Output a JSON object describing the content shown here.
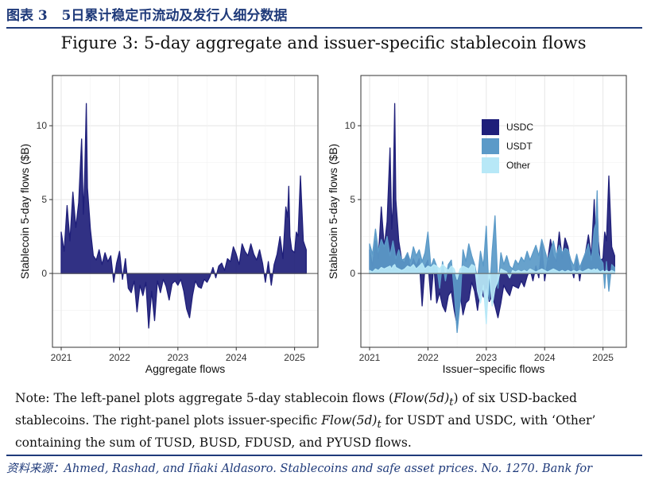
{
  "header": {
    "label": "图表 3",
    "title": "5日累计稳定币流动及发行人细分数据"
  },
  "figure_title": "Figure 3: 5-day aggregate and issuer-specific stablecoin flows",
  "note": {
    "lead": "Note:",
    "p1": " The left-panel plots aggregate 5-day stablecoin flows (",
    "m1": "Flow(5d)",
    "m1sub": "t",
    "p2": ") of six USD-backed stablecoins. The right-panel plots issuer-specific ",
    "m2": "Flow(5d)",
    "m2sub": "t",
    "p3": " for USDT and USDC, with ‘Other’ containing the sum of TUSD, BUSD, FDUSD, and PYUSD flows."
  },
  "source": "资料来源：Ahmed, Rashad, and Iñaki Aldasoro. Stablecoins and safe asset prices. No. 1270. Bank for",
  "colors": {
    "usdc": "#1f1f7a",
    "usdt": "#5b9ac8",
    "other": "#b7e8f7",
    "aggregate": "#1f1f7a",
    "zero_line": "#555555",
    "grid": "#e6e6e6"
  },
  "chart_data": [
    {
      "type": "area",
      "xlabel": "Aggregate flows",
      "ylabel": "Stablecoin 5-day flows ($B)",
      "xlim": [
        2020.85,
        2025.4
      ],
      "ylim": [
        -5,
        13.4
      ],
      "x_ticks": [
        2021,
        2022,
        2023,
        2024,
        2025
      ],
      "x_tick_labels": [
        "2021",
        "2022",
        "2023",
        "2024",
        "2025"
      ],
      "y_ticks": [
        0,
        5,
        10
      ],
      "y_tick_labels": [
        "0",
        "5",
        "10"
      ],
      "grid": true,
      "series": [
        {
          "key": "aggregate",
          "x": [
            2021.0,
            2021.05,
            2021.1,
            2021.15,
            2021.2,
            2021.25,
            2021.3,
            2021.35,
            2021.38,
            2021.4,
            2021.43,
            2021.45,
            2021.5,
            2021.55,
            2021.6,
            2021.65,
            2021.7,
            2021.75,
            2021.8,
            2021.85,
            2021.9,
            2021.95,
            2022.0,
            2022.05,
            2022.1,
            2022.15,
            2022.2,
            2022.25,
            2022.3,
            2022.35,
            2022.4,
            2022.45,
            2022.5,
            2022.55,
            2022.6,
            2022.65,
            2022.7,
            2022.75,
            2022.8,
            2022.85,
            2022.9,
            2022.95,
            2023.0,
            2023.05,
            2023.1,
            2023.15,
            2023.2,
            2023.25,
            2023.3,
            2023.35,
            2023.4,
            2023.45,
            2023.5,
            2023.55,
            2023.6,
            2023.65,
            2023.7,
            2023.75,
            2023.8,
            2023.85,
            2023.9,
            2023.95,
            2024.0,
            2024.05,
            2024.1,
            2024.15,
            2024.2,
            2024.25,
            2024.3,
            2024.35,
            2024.4,
            2024.45,
            2024.5,
            2024.55,
            2024.6,
            2024.65,
            2024.7,
            2024.75,
            2024.8,
            2024.85,
            2024.88,
            2024.9,
            2024.92,
            2024.95,
            2025.0,
            2025.03,
            2025.06,
            2025.1,
            2025.15,
            2025.2
          ],
          "y": [
            2.8,
            1.5,
            4.6,
            2.2,
            5.5,
            3.1,
            4.8,
            9.1,
            4.0,
            6.2,
            11.5,
            5.8,
            3.0,
            1.2,
            0.9,
            1.6,
            0.6,
            1.4,
            0.8,
            1.2,
            -0.6,
            0.7,
            1.5,
            -0.4,
            1.0,
            -1.0,
            -1.3,
            -0.5,
            -2.6,
            -0.8,
            -1.5,
            -0.6,
            -3.7,
            -1.2,
            -3.2,
            -0.5,
            -1.3,
            -0.4,
            -0.9,
            -1.8,
            -0.7,
            -0.5,
            -0.8,
            -0.4,
            -1.2,
            -2.4,
            -3.0,
            -1.5,
            -0.5,
            -0.9,
            -1.0,
            -0.4,
            -0.6,
            -0.2,
            0.4,
            -0.3,
            0.5,
            0.7,
            0.2,
            1.0,
            0.8,
            1.8,
            1.3,
            0.6,
            2.0,
            1.5,
            1.2,
            2.0,
            1.3,
            0.9,
            1.6,
            0.7,
            -0.6,
            0.8,
            -0.8,
            0.6,
            1.3,
            2.5,
            1.0,
            4.5,
            3.8,
            5.9,
            2.5,
            1.6,
            1.4,
            2.8,
            2.5,
            6.6,
            2.2,
            1.6
          ]
        }
      ]
    },
    {
      "type": "area",
      "xlabel": "Issuer−specific flows",
      "ylabel": "Stablecoin 5-day flows ($B)",
      "xlim": [
        2020.85,
        2025.4
      ],
      "ylim": [
        -5,
        13.4
      ],
      "x_ticks": [
        2021,
        2022,
        2023,
        2024,
        2025
      ],
      "x_tick_labels": [
        "2021",
        "2022",
        "2023",
        "2024",
        "2025"
      ],
      "y_ticks": [
        0,
        5,
        10
      ],
      "y_tick_labels": [
        "0",
        "5",
        "10"
      ],
      "grid": true,
      "legend_position": "top-right",
      "series": [
        {
          "name": "USDC",
          "key": "usdc",
          "x": [
            2021.0,
            2021.05,
            2021.1,
            2021.15,
            2021.2,
            2021.25,
            2021.3,
            2021.35,
            2021.38,
            2021.4,
            2021.43,
            2021.45,
            2021.5,
            2021.55,
            2021.6,
            2021.65,
            2021.7,
            2021.75,
            2021.8,
            2021.85,
            2021.9,
            2021.95,
            2022.0,
            2022.05,
            2022.1,
            2022.15,
            2022.2,
            2022.25,
            2022.3,
            2022.35,
            2022.4,
            2022.45,
            2022.5,
            2022.55,
            2022.6,
            2022.65,
            2022.7,
            2022.75,
            2022.8,
            2022.85,
            2022.9,
            2022.95,
            2023.0,
            2023.05,
            2023.1,
            2023.15,
            2023.2,
            2023.25,
            2023.3,
            2023.35,
            2023.4,
            2023.45,
            2023.5,
            2023.55,
            2023.6,
            2023.65,
            2023.7,
            2023.75,
            2023.8,
            2023.85,
            2023.9,
            2023.95,
            2024.0,
            2024.05,
            2024.1,
            2024.15,
            2024.2,
            2024.25,
            2024.3,
            2024.35,
            2024.4,
            2024.45,
            2024.5,
            2024.55,
            2024.6,
            2024.65,
            2024.7,
            2024.75,
            2024.8,
            2024.85,
            2024.88,
            2024.9,
            2024.92,
            2024.95,
            2025.0,
            2025.03,
            2025.06,
            2025.1,
            2025.15,
            2025.2
          ],
          "y": [
            1.6,
            0.5,
            2.2,
            1.0,
            4.5,
            1.8,
            3.5,
            8.5,
            3.0,
            4.5,
            11.5,
            5.0,
            2.2,
            0.9,
            0.7,
            1.4,
            0.3,
            1.0,
            0.5,
            1.0,
            -2.2,
            0.5,
            0.9,
            -1.8,
            0.6,
            -2.0,
            -1.3,
            -2.2,
            -2.6,
            -1.5,
            -1.2,
            -2.5,
            -3.5,
            -1.3,
            -2.8,
            -2.0,
            -1.8,
            -0.6,
            -1.2,
            -2.5,
            -1.0,
            -1.6,
            -0.8,
            -1.9,
            -1.5,
            -2.2,
            -3.0,
            -2.0,
            -0.8,
            -1.2,
            -1.5,
            -0.8,
            -0.9,
            -1.0,
            -0.5,
            -0.9,
            -0.2,
            0.3,
            -0.5,
            0.5,
            -0.3,
            2.0,
            -0.5,
            0.8,
            2.3,
            1.2,
            0.8,
            2.8,
            1.0,
            2.4,
            1.8,
            0.5,
            -0.3,
            1.0,
            -0.5,
            0.8,
            1.4,
            2.6,
            1.2,
            5.0,
            2.0,
            4.7,
            2.2,
            0.9,
            1.0,
            2.8,
            2.2,
            6.6,
            1.8,
            1.2
          ]
        },
        {
          "name": "USDT",
          "key": "usdt",
          "x": [
            2021.0,
            2021.05,
            2021.1,
            2021.15,
            2021.2,
            2021.25,
            2021.3,
            2021.35,
            2021.38,
            2021.4,
            2021.43,
            2021.45,
            2021.5,
            2021.55,
            2021.6,
            2021.65,
            2021.7,
            2021.75,
            2021.8,
            2021.85,
            2021.9,
            2021.95,
            2022.0,
            2022.05,
            2022.1,
            2022.15,
            2022.2,
            2022.25,
            2022.3,
            2022.35,
            2022.4,
            2022.45,
            2022.5,
            2022.55,
            2022.6,
            2022.65,
            2022.7,
            2022.75,
            2022.8,
            2022.85,
            2022.9,
            2022.95,
            2023.0,
            2023.05,
            2023.1,
            2023.15,
            2023.2,
            2023.25,
            2023.3,
            2023.35,
            2023.4,
            2023.45,
            2023.5,
            2023.55,
            2023.6,
            2023.65,
            2023.7,
            2023.75,
            2023.8,
            2023.85,
            2023.9,
            2023.95,
            2024.0,
            2024.05,
            2024.1,
            2024.15,
            2024.2,
            2024.25,
            2024.3,
            2024.35,
            2024.4,
            2024.45,
            2024.5,
            2024.55,
            2024.6,
            2024.65,
            2024.7,
            2024.75,
            2024.8,
            2024.85,
            2024.88,
            2024.9,
            2024.92,
            2024.95,
            2025.0,
            2025.03,
            2025.06,
            2025.1,
            2025.15,
            2025.2
          ],
          "y": [
            2.0,
            1.3,
            3.0,
            1.5,
            2.3,
            1.8,
            2.5,
            1.2,
            1.8,
            2.2,
            1.5,
            1.0,
            1.6,
            0.9,
            1.0,
            1.4,
            0.8,
            1.8,
            1.2,
            1.6,
            0.8,
            1.4,
            2.8,
            0.4,
            1.0,
            0.5,
            -1.0,
            0.8,
            -0.5,
            0.6,
            0.9,
            -1.2,
            -4.0,
            -2.0,
            1.6,
            0.8,
            2.0,
            1.2,
            0.6,
            -0.4,
            1.5,
            0.5,
            3.2,
            -1.8,
            1.5,
            3.9,
            -1.0,
            1.4,
            0.6,
            1.2,
            0.5,
            0.3,
            0.9,
            0.6,
            1.1,
            0.8,
            1.5,
            0.9,
            1.4,
            1.9,
            1.2,
            2.3,
            1.6,
            0.9,
            1.5,
            2.2,
            1.2,
            1.9,
            1.4,
            1.7,
            1.6,
            0.9,
            0.5,
            1.3,
            0.4,
            0.9,
            1.4,
            2.0,
            0.9,
            3.0,
            3.4,
            5.6,
            1.4,
            1.0,
            0.7,
            -1.0,
            0.8,
            -1.2,
            0.6,
            0.4
          ]
        },
        {
          "name": "Other",
          "key": "other",
          "x": [
            2021.0,
            2021.05,
            2021.1,
            2021.15,
            2021.2,
            2021.25,
            2021.3,
            2021.35,
            2021.38,
            2021.4,
            2021.43,
            2021.45,
            2021.5,
            2021.55,
            2021.6,
            2021.65,
            2021.7,
            2021.75,
            2021.8,
            2021.85,
            2021.9,
            2021.95,
            2022.0,
            2022.05,
            2022.1,
            2022.15,
            2022.2,
            2022.25,
            2022.3,
            2022.35,
            2022.4,
            2022.45,
            2022.5,
            2022.55,
            2022.6,
            2022.65,
            2022.7,
            2022.75,
            2022.8,
            2022.85,
            2022.9,
            2022.95,
            2023.0,
            2023.05,
            2023.1,
            2023.15,
            2023.2,
            2023.25,
            2023.3,
            2023.35,
            2023.4,
            2023.45,
            2023.5,
            2023.55,
            2023.6,
            2023.65,
            2023.7,
            2023.75,
            2023.8,
            2023.85,
            2023.9,
            2023.95,
            2024.0,
            2024.05,
            2024.1,
            2024.15,
            2024.2,
            2024.25,
            2024.3,
            2024.35,
            2024.4,
            2024.45,
            2024.5,
            2024.55,
            2024.6,
            2024.65,
            2024.7,
            2024.75,
            2024.8,
            2024.85,
            2024.88,
            2024.9,
            2024.92,
            2024.95,
            2025.0,
            2025.03,
            2025.06,
            2025.1,
            2025.15,
            2025.2
          ],
          "y": [
            0.2,
            0.1,
            0.3,
            0.2,
            0.4,
            0.3,
            0.4,
            0.5,
            0.3,
            0.5,
            0.6,
            0.4,
            0.3,
            0.2,
            0.3,
            0.5,
            0.4,
            0.6,
            0.3,
            0.5,
            0.7,
            0.3,
            0.5,
            0.4,
            0.6,
            0.5,
            0.3,
            0.6,
            0.4,
            0.2,
            0.5,
            0.3,
            -0.4,
            0.3,
            0.5,
            0.4,
            0.3,
            0.6,
            0.5,
            -1.2,
            -2.0,
            -0.8,
            -3.4,
            0.2,
            -2.2,
            -1.0,
            -0.5,
            0.3,
            0.2,
            0.1,
            -0.3,
            0.2,
            0.1,
            0.2,
            0.1,
            0.2,
            0.1,
            0.3,
            0.2,
            0.1,
            0.2,
            0.3,
            0.2,
            0.1,
            0.2,
            0.3,
            0.2,
            0.1,
            0.2,
            0.1,
            0.2,
            0.1,
            0.2,
            0.1,
            0.2,
            0.1,
            0.2,
            0.3,
            0.2,
            0.3,
            0.2,
            0.3,
            0.2,
            0.1,
            0.2,
            0.1,
            0.2,
            0.1,
            0.2,
            0.1
          ]
        }
      ]
    }
  ]
}
